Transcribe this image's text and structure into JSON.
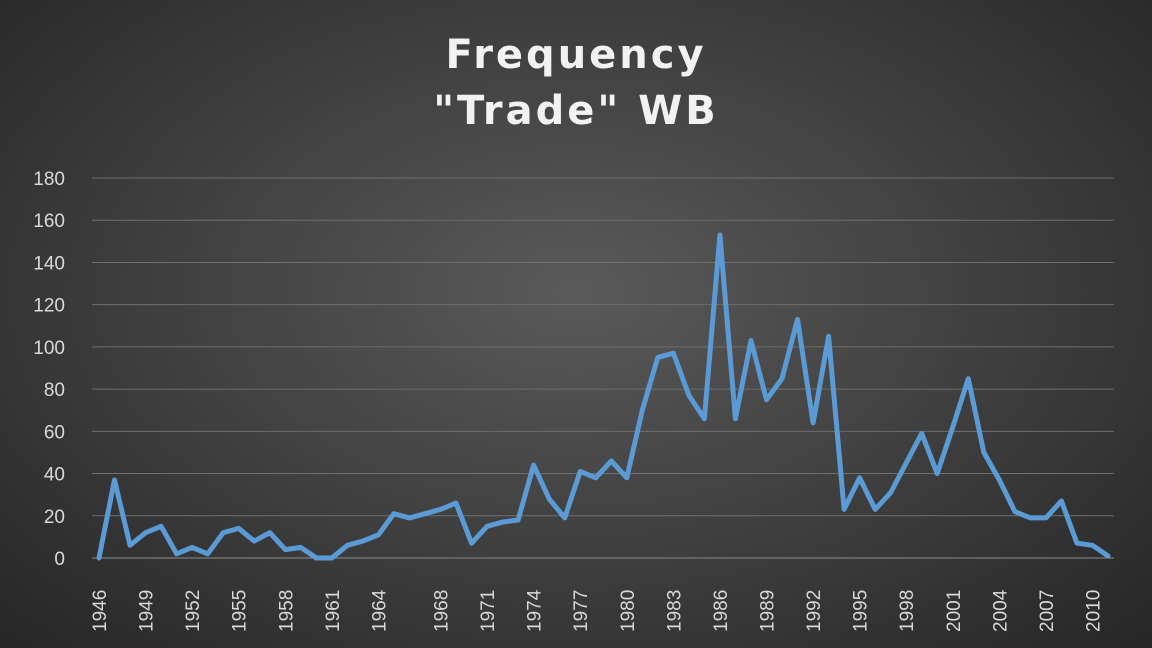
{
  "chart_data": {
    "type": "line",
    "title": "Frequency",
    "subtitle": "\"Trade\" WB",
    "xlabel": "",
    "ylabel": "",
    "ylim": [
      0,
      180
    ],
    "yticks": [
      0,
      20,
      40,
      60,
      80,
      100,
      120,
      140,
      160,
      180
    ],
    "xtick_labels": [
      "1946",
      "1949",
      "1952",
      "1955",
      "1958",
      "1961",
      "1964",
      "1968",
      "1971",
      "1974",
      "1977",
      "1980",
      "1983",
      "1986",
      "1989",
      "1992",
      "1995",
      "1998",
      "2001",
      "2004",
      "2007",
      "2010"
    ],
    "grid": true,
    "legend": "none",
    "line_color": "#5b9bd5",
    "series": [
      {
        "values": [
          0,
          37,
          6,
          12,
          15,
          2,
          5,
          2,
          12,
          14,
          8,
          12,
          4,
          5,
          0,
          0,
          6,
          8,
          11,
          21,
          19,
          21,
          23,
          26,
          7,
          15,
          17,
          18,
          44,
          28,
          19,
          41,
          38,
          46,
          38,
          70,
          95,
          97,
          77,
          66,
          153,
          66,
          103,
          75,
          85,
          113,
          64,
          105,
          23,
          38,
          23,
          31,
          45,
          59,
          40,
          62,
          85,
          50,
          37,
          22,
          19,
          19,
          27,
          7,
          6,
          1
        ]
      }
    ]
  }
}
